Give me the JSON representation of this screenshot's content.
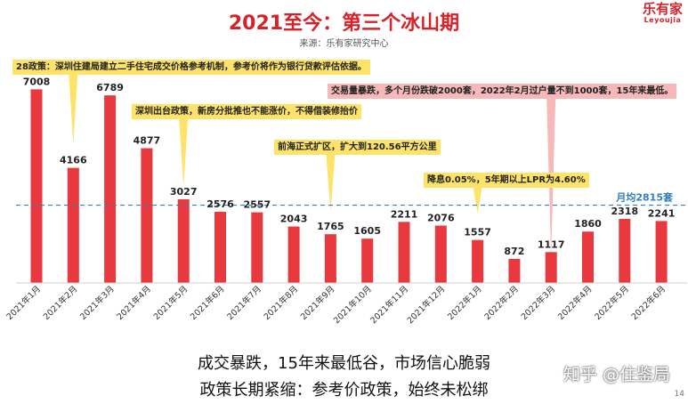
{
  "header": {
    "title": "2021至今：第三个冰山期",
    "source": "来源：乐有家研究中心",
    "logo_text": "乐有家",
    "logo_sub": "Leyoujia"
  },
  "chart_data": {
    "type": "bar",
    "title": "2021至今：第三个冰山期",
    "categories": [
      "2021年1月",
      "2021年2月",
      "2021年3月",
      "2021年4月",
      "2021年5月",
      "2021年6月",
      "2021年7月",
      "2021年8月",
      "2021年9月",
      "2021年10月",
      "2021年11月",
      "2021年12月",
      "2022年1月",
      "2022年2月",
      "2022年3月",
      "2022年4月",
      "2022年5月",
      "2022年6月"
    ],
    "values": [
      7008,
      4166,
      6789,
      4877,
      3027,
      2576,
      2557,
      2043,
      1765,
      1605,
      2211,
      2076,
      1557,
      872,
      1117,
      1860,
      2318,
      2241
    ],
    "ylim": [
      0,
      7600
    ],
    "grid": false,
    "bar_color": "#e8393e",
    "reference_line": {
      "value": 2815,
      "label": "月均2815套",
      "color": "#2f7fc1"
    },
    "annotations": [
      {
        "text": "28政策：深圳住建局建立二手住宅成交价格参考机制，参考价将作为银行贷款评估依据。",
        "style": "yellow",
        "category_index": 1
      },
      {
        "text": "深圳出台政策，新房分批推也不能涨价，不得借装修抬价",
        "style": "yellow",
        "category_index": 4
      },
      {
        "text": "前海正式扩区，扩大到120.56平方公里",
        "style": "yellow",
        "category_index": 8
      },
      {
        "text": "降息0.05%，5年期以上LPR为4.60%",
        "style": "yellow",
        "category_index": 12
      },
      {
        "text": "交易量暴跌，多个月份跌破2000套，2022年2月过户量不到1000套，15年来最低。",
        "style": "pink",
        "category_index": 14
      }
    ]
  },
  "footer": {
    "line1": "成交暴跌，15年来最低谷，市场信心脆弱",
    "line2": "政策长期紧缩：参考价政策，始终未松绑",
    "watermark": "知乎 @住鉴局",
    "page": "14"
  }
}
